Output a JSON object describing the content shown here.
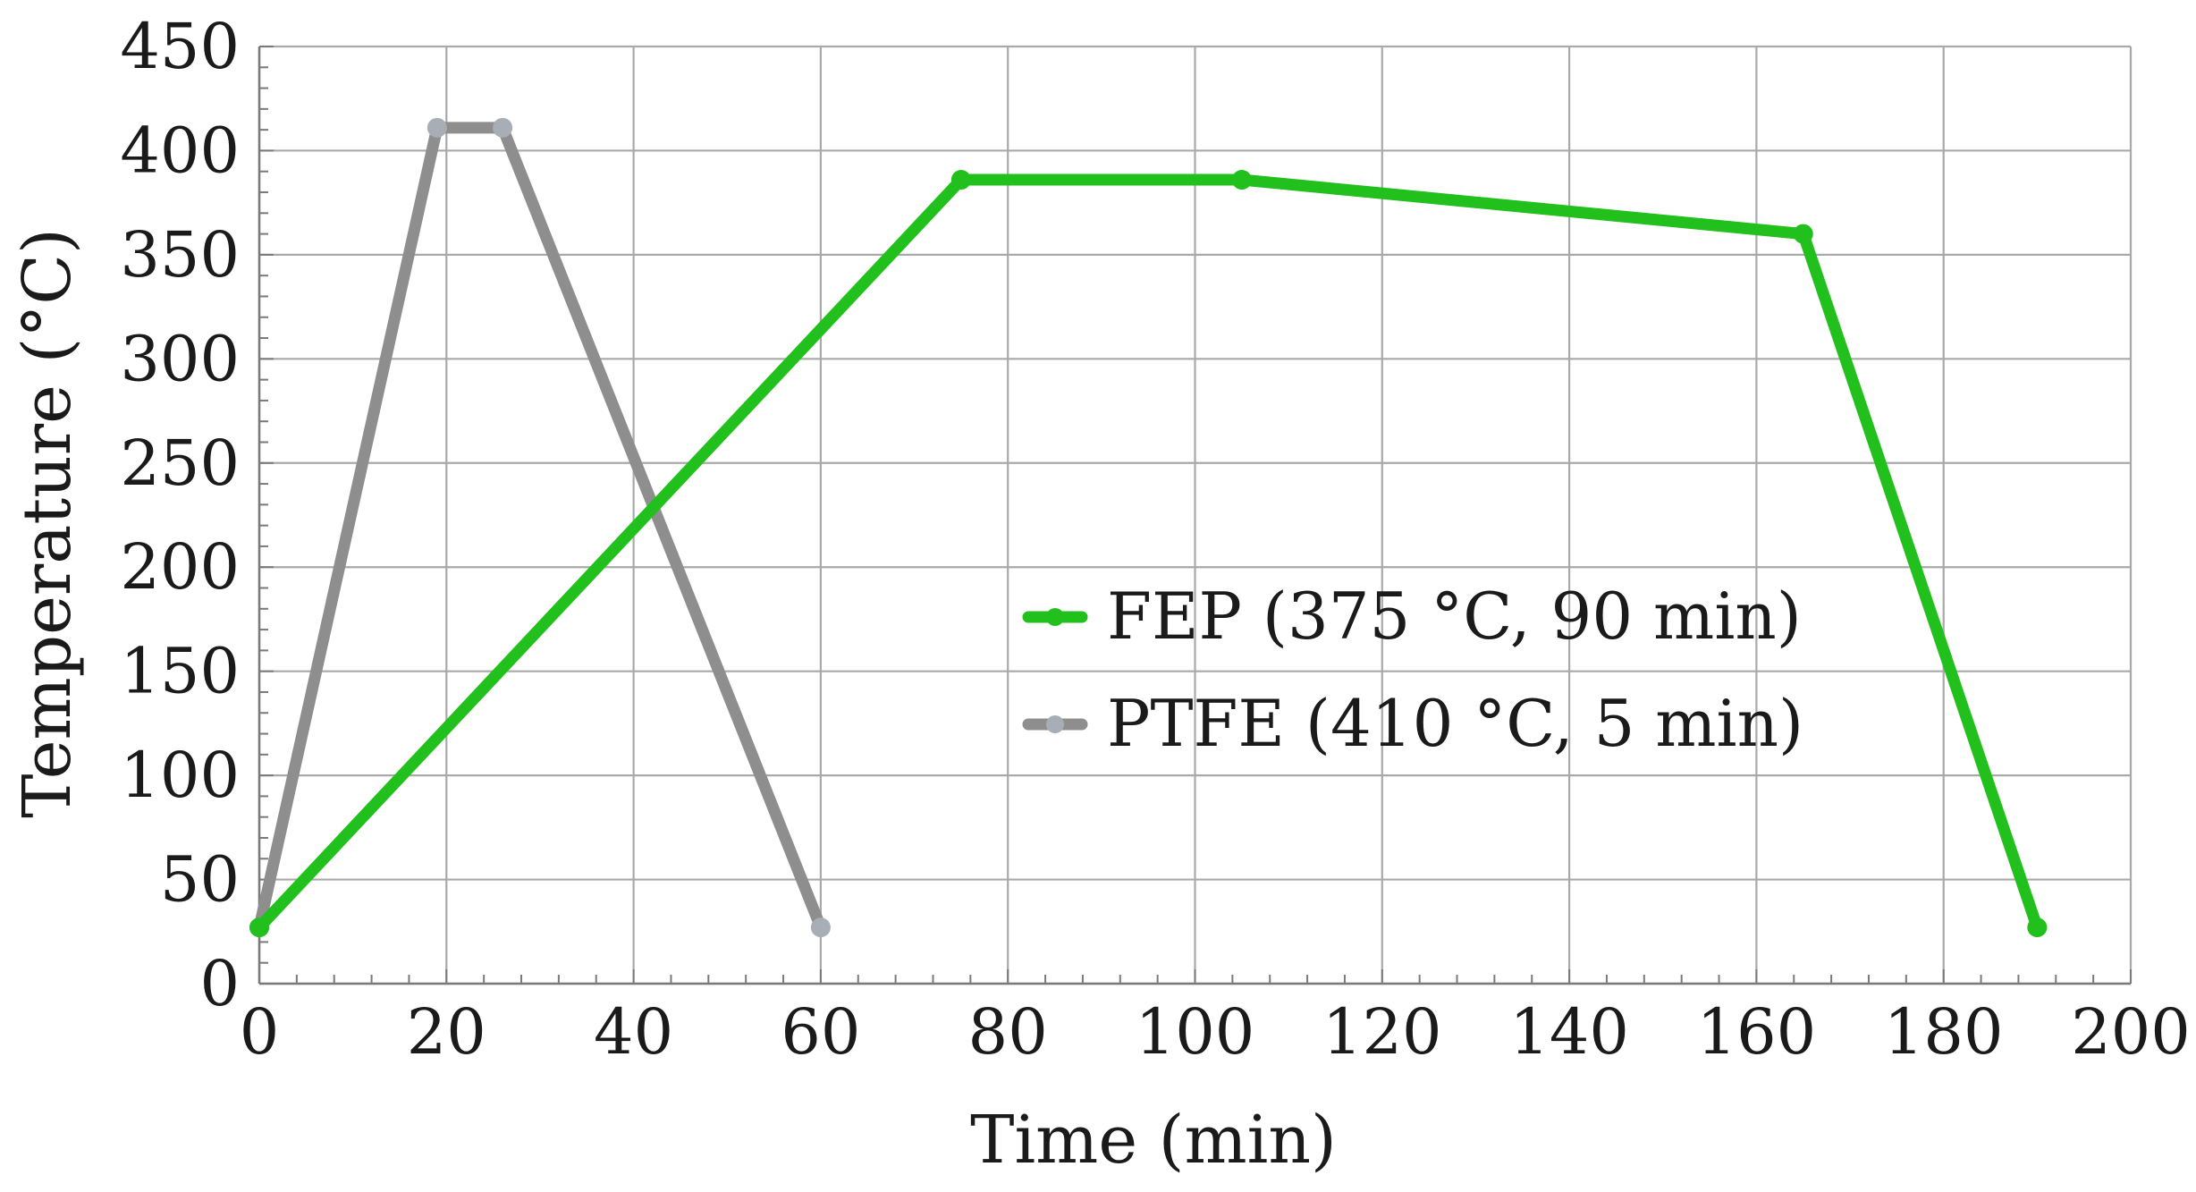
{
  "chart_data": {
    "type": "line",
    "title": "",
    "xlabel": "Time (min)",
    "ylabel": "Temperature (°C)",
    "xlim": [
      0,
      200
    ],
    "ylim": [
      0,
      450
    ],
    "x_ticks": [
      0,
      20,
      40,
      60,
      80,
      100,
      120,
      140,
      160,
      180,
      200
    ],
    "y_ticks": [
      0,
      50,
      100,
      150,
      200,
      250,
      300,
      350,
      400,
      450
    ],
    "grid": true,
    "legend_position": "center-right",
    "series": [
      {
        "name": "FEP (375 °C, 90 min)",
        "color": "#22c01c",
        "marker_color": "#22c01c",
        "points": [
          [
            0,
            27
          ],
          [
            75,
            386
          ],
          [
            105,
            386
          ],
          [
            165,
            360
          ],
          [
            190,
            27
          ]
        ]
      },
      {
        "name": "PTFE (410 °C, 5 min)",
        "color": "#8e8e8e",
        "marker_color": "#a8aeb6",
        "points": [
          [
            0,
            27
          ],
          [
            19,
            411
          ],
          [
            26,
            411
          ],
          [
            60,
            27
          ]
        ]
      }
    ]
  }
}
